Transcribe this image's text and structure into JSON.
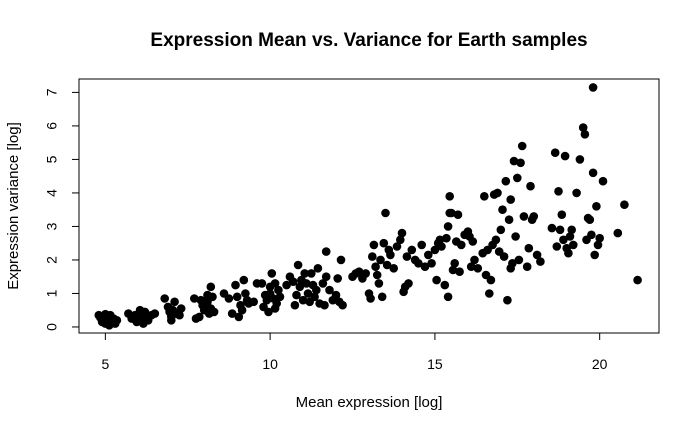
{
  "chart_data": {
    "type": "scatter",
    "title": "Expression Mean vs. Variance for Earth samples",
    "xlabel": "Mean expression [log]",
    "ylabel": "Expression variance [log]",
    "xlim": [
      4.2,
      21.8
    ],
    "ylim": [
      -0.18,
      7.4
    ],
    "xticks": [
      5,
      10,
      15,
      20
    ],
    "yticks": [
      0,
      1,
      2,
      3,
      4,
      5,
      6,
      7
    ],
    "grid": false,
    "legend": "none",
    "point_color": "#000000",
    "points": [
      [
        4.8,
        0.35
      ],
      [
        4.9,
        0.15
      ],
      [
        4.95,
        0.25
      ],
      [
        5.0,
        0.1
      ],
      [
        5.05,
        0.3
      ],
      [
        5.1,
        0.2
      ],
      [
        5.15,
        0.35
      ],
      [
        5.2,
        0.15
      ],
      [
        5.25,
        0.25
      ],
      [
        5.3,
        0.1
      ],
      [
        5.0,
        0.38
      ],
      [
        4.85,
        0.28
      ],
      [
        5.12,
        0.05
      ],
      [
        5.35,
        0.2
      ],
      [
        5.05,
        0.15
      ],
      [
        5.7,
        0.4
      ],
      [
        5.8,
        0.25
      ],
      [
        5.9,
        0.35
      ],
      [
        6.0,
        0.2
      ],
      [
        6.05,
        0.5
      ],
      [
        6.1,
        0.3
      ],
      [
        6.15,
        0.1
      ],
      [
        6.2,
        0.45
      ],
      [
        6.25,
        0.25
      ],
      [
        6.3,
        0.2
      ],
      [
        6.5,
        0.4
      ],
      [
        5.95,
        0.15
      ],
      [
        6.4,
        0.35
      ],
      [
        6.8,
        0.85
      ],
      [
        6.9,
        0.6
      ],
      [
        6.95,
        0.45
      ],
      [
        7.0,
        0.3
      ],
      [
        7.05,
        0.5
      ],
      [
        7.1,
        0.75
      ],
      [
        7.15,
        0.4
      ],
      [
        7.25,
        0.35
      ],
      [
        7.3,
        0.55
      ],
      [
        7.0,
        0.2
      ],
      [
        7.7,
        0.85
      ],
      [
        7.75,
        0.25
      ],
      [
        7.85,
        0.3
      ],
      [
        7.9,
        0.8
      ],
      [
        8.0,
        0.5
      ],
      [
        8.05,
        0.6
      ],
      [
        8.1,
        0.75
      ],
      [
        8.15,
        0.4
      ],
      [
        8.2,
        1.2
      ],
      [
        8.25,
        0.9
      ],
      [
        8.1,
        0.95
      ],
      [
        8.3,
        0.45
      ],
      [
        7.95,
        0.65
      ],
      [
        8.2,
        0.55
      ],
      [
        8.6,
        1.0
      ],
      [
        8.75,
        0.85
      ],
      [
        8.85,
        0.4
      ],
      [
        8.95,
        1.25
      ],
      [
        9.05,
        0.3
      ],
      [
        9.1,
        0.65
      ],
      [
        9.15,
        0.5
      ],
      [
        9.2,
        1.4
      ],
      [
        9.3,
        0.8
      ],
      [
        9.35,
        0.7
      ],
      [
        9.5,
        0.75
      ],
      [
        9.6,
        1.3
      ],
      [
        9.0,
        0.9
      ],
      [
        9.25,
        1.0
      ],
      [
        9.75,
        1.3
      ],
      [
        9.8,
        0.6
      ],
      [
        9.85,
        0.95
      ],
      [
        9.9,
        0.8
      ],
      [
        9.95,
        0.45
      ],
      [
        10.0,
        1.0
      ],
      [
        10.05,
        1.6
      ],
      [
        10.1,
        0.85
      ],
      [
        10.15,
        1.3
      ],
      [
        10.2,
        0.7
      ],
      [
        10.25,
        1.1
      ],
      [
        10.3,
        0.9
      ],
      [
        10.0,
        1.2
      ],
      [
        10.15,
        0.55
      ],
      [
        10.5,
        1.25
      ],
      [
        10.6,
        1.5
      ],
      [
        10.7,
        1.35
      ],
      [
        10.75,
        0.65
      ],
      [
        10.8,
        0.95
      ],
      [
        10.85,
        1.85
      ],
      [
        10.9,
        1.2
      ],
      [
        11.0,
        0.8
      ],
      [
        11.05,
        1.6
      ],
      [
        11.1,
        1.3
      ],
      [
        11.15,
        1.0
      ],
      [
        11.2,
        0.75
      ],
      [
        11.3,
        1.25
      ],
      [
        11.35,
        0.9
      ],
      [
        11.4,
        1.1
      ],
      [
        11.45,
        1.75
      ],
      [
        11.5,
        0.7
      ],
      [
        11.6,
        1.3
      ],
      [
        11.65,
        0.65
      ],
      [
        11.7,
        1.5
      ],
      [
        11.8,
        1.1
      ],
      [
        11.9,
        0.8
      ],
      [
        12.0,
        0.95
      ],
      [
        12.05,
        1.45
      ],
      [
        12.1,
        0.75
      ],
      [
        12.15,
        2.0
      ],
      [
        12.2,
        0.65
      ],
      [
        11.7,
        2.25
      ],
      [
        11.25,
        1.6
      ],
      [
        10.95,
        1.4
      ],
      [
        12.5,
        1.5
      ],
      [
        12.6,
        1.6
      ],
      [
        12.7,
        1.65
      ],
      [
        12.8,
        1.45
      ],
      [
        12.9,
        1.6
      ],
      [
        13.0,
        1.0
      ],
      [
        13.05,
        0.85
      ],
      [
        13.1,
        2.1
      ],
      [
        13.15,
        2.45
      ],
      [
        13.2,
        1.8
      ],
      [
        13.3,
        1.3
      ],
      [
        13.35,
        2.0
      ],
      [
        13.4,
        0.9
      ],
      [
        13.45,
        2.5
      ],
      [
        13.5,
        3.4
      ],
      [
        13.55,
        1.85
      ],
      [
        13.6,
        2.3
      ],
      [
        13.65,
        2.15
      ],
      [
        13.75,
        1.75
      ],
      [
        13.85,
        2.4
      ],
      [
        13.95,
        2.6
      ],
      [
        14.0,
        2.8
      ],
      [
        14.1,
        1.2
      ],
      [
        14.15,
        2.1
      ],
      [
        14.2,
        1.3
      ],
      [
        14.3,
        2.3
      ],
      [
        14.4,
        2.0
      ],
      [
        14.5,
        1.9
      ],
      [
        13.25,
        1.55
      ],
      [
        14.05,
        1.05
      ],
      [
        14.6,
        2.45
      ],
      [
        14.7,
        1.8
      ],
      [
        14.8,
        2.15
      ],
      [
        14.9,
        1.9
      ],
      [
        15.0,
        2.3
      ],
      [
        15.05,
        1.4
      ],
      [
        15.1,
        2.5
      ],
      [
        15.15,
        2.6
      ],
      [
        15.2,
        2.4
      ],
      [
        15.3,
        1.25
      ],
      [
        15.35,
        2.65
      ],
      [
        15.4,
        3.0
      ],
      [
        15.45,
        3.9
      ],
      [
        15.5,
        3.4
      ],
      [
        15.55,
        1.7
      ],
      [
        15.6,
        1.9
      ],
      [
        15.65,
        2.55
      ],
      [
        15.7,
        3.35
      ],
      [
        15.75,
        1.65
      ],
      [
        15.8,
        2.45
      ],
      [
        15.9,
        2.75
      ],
      [
        16.0,
        2.85
      ],
      [
        16.1,
        1.8
      ],
      [
        16.15,
        2.55
      ],
      [
        16.2,
        2.0
      ],
      [
        16.3,
        1.75
      ],
      [
        15.4,
        0.9
      ],
      [
        15.45,
        3.4
      ],
      [
        16.05,
        2.7
      ],
      [
        16.5,
        3.9
      ],
      [
        16.55,
        1.55
      ],
      [
        16.6,
        2.3
      ],
      [
        16.65,
        1.0
      ],
      [
        16.7,
        1.4
      ],
      [
        16.75,
        2.45
      ],
      [
        16.8,
        3.95
      ],
      [
        16.85,
        2.6
      ],
      [
        16.9,
        4.0
      ],
      [
        16.95,
        2.25
      ],
      [
        17.0,
        2.9
      ],
      [
        17.05,
        3.5
      ],
      [
        17.1,
        2.1
      ],
      [
        17.15,
        4.35
      ],
      [
        17.2,
        0.8
      ],
      [
        17.25,
        3.2
      ],
      [
        17.3,
        3.8
      ],
      [
        17.35,
        1.9
      ],
      [
        17.4,
        4.95
      ],
      [
        17.45,
        2.7
      ],
      [
        17.5,
        4.45
      ],
      [
        17.55,
        2.0
      ],
      [
        17.6,
        4.9
      ],
      [
        17.65,
        5.4
      ],
      [
        17.7,
        3.3
      ],
      [
        17.8,
        1.8
      ],
      [
        17.85,
        2.35
      ],
      [
        17.9,
        4.2
      ],
      [
        17.95,
        3.2
      ],
      [
        18.0,
        3.3
      ],
      [
        18.1,
        2.15
      ],
      [
        18.2,
        1.95
      ],
      [
        17.3,
        1.75
      ],
      [
        16.45,
        2.2
      ],
      [
        18.55,
        2.95
      ],
      [
        18.65,
        5.2
      ],
      [
        18.7,
        2.4
      ],
      [
        18.75,
        4.05
      ],
      [
        18.8,
        2.9
      ],
      [
        18.85,
        3.35
      ],
      [
        18.9,
        2.6
      ],
      [
        18.95,
        5.1
      ],
      [
        19.0,
        2.35
      ],
      [
        19.05,
        2.2
      ],
      [
        19.1,
        2.7
      ],
      [
        19.2,
        2.45
      ],
      [
        19.3,
        4.0
      ],
      [
        19.4,
        5.0
      ],
      [
        19.5,
        5.95
      ],
      [
        19.55,
        5.75
      ],
      [
        19.6,
        2.6
      ],
      [
        19.7,
        3.2
      ],
      [
        19.75,
        2.75
      ],
      [
        19.8,
        7.15
      ],
      [
        19.85,
        2.15
      ],
      [
        19.9,
        3.6
      ],
      [
        19.95,
        2.45
      ],
      [
        20.0,
        2.65
      ],
      [
        20.1,
        4.35
      ],
      [
        19.65,
        3.25
      ],
      [
        19.8,
        4.6
      ],
      [
        19.15,
        2.9
      ],
      [
        20.55,
        2.8
      ],
      [
        20.75,
        3.65
      ],
      [
        21.15,
        1.4
      ]
    ]
  }
}
